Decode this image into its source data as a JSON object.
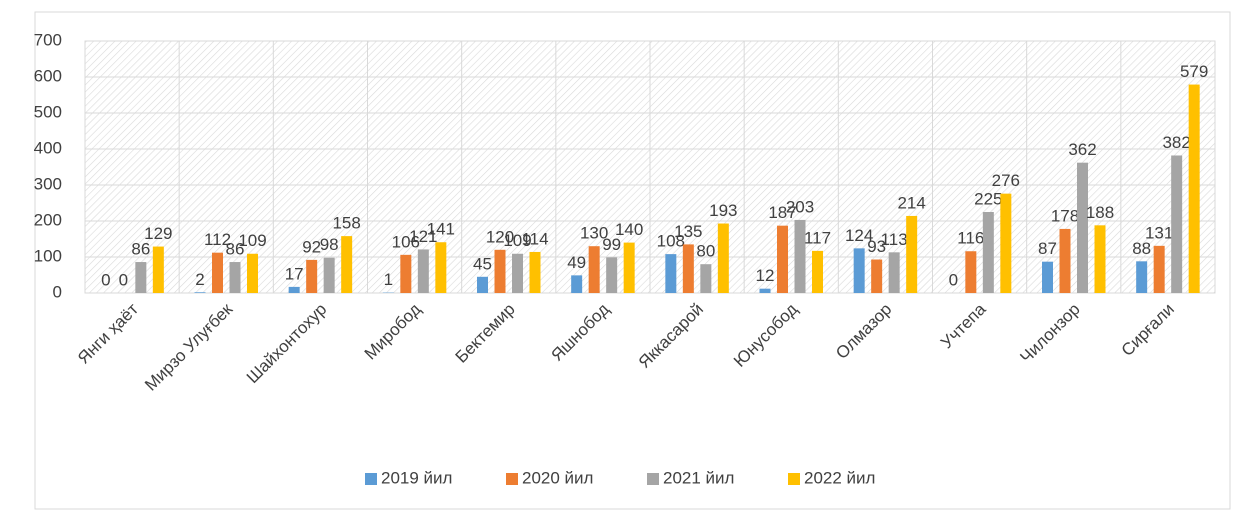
{
  "chart_data": {
    "type": "bar",
    "categories": [
      "Янги ҳаёт",
      "Мирзо Улуғбек",
      "Шайхонтохур",
      "Миробод",
      "Бектемир",
      "Яшнобод",
      "Яккасарой",
      "Юнусобод",
      "Олмазор",
      "Учтепа",
      "Чилонзор",
      "Сирғали"
    ],
    "series": [
      {
        "name": "2019 йил",
        "color": "#5b9bd5",
        "values": [
          0,
          2,
          17,
          1,
          45,
          49,
          108,
          12,
          124,
          0,
          87,
          88
        ]
      },
      {
        "name": "2020 йил",
        "color": "#ed7d31",
        "values": [
          0,
          112,
          92,
          106,
          120,
          130,
          135,
          187,
          93,
          116,
          178,
          131
        ]
      },
      {
        "name": "2021 йил",
        "color": "#a5a5a5",
        "values": [
          86,
          86,
          98,
          121,
          109,
          99,
          80,
          203,
          113,
          225,
          362,
          382
        ]
      },
      {
        "name": "2022 йил",
        "color": "#ffc000",
        "values": [
          129,
          109,
          158,
          141,
          114,
          140,
          193,
          117,
          214,
          276,
          188,
          579
        ]
      }
    ],
    "ylim": [
      0,
      700
    ],
    "yticks": [
      0,
      100,
      200,
      300,
      400,
      500,
      600,
      700
    ],
    "grid": true,
    "legend": "bottom"
  }
}
